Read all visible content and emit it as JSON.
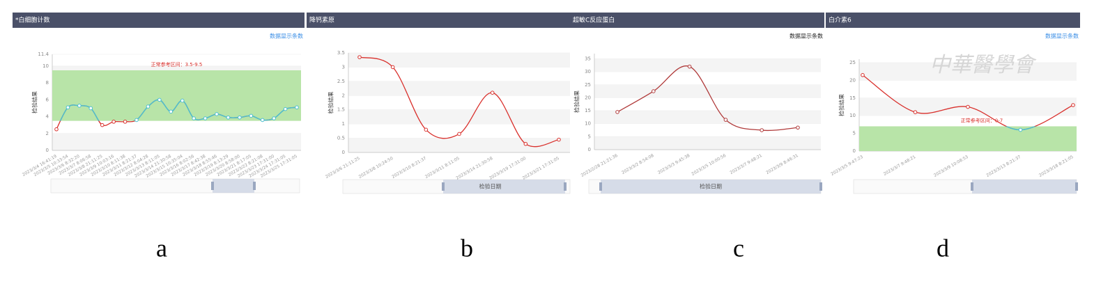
{
  "chart_data": [
    {
      "type": "line",
      "panel_title": "*白细胞计数",
      "data_count_link": "数据显示条数",
      "panel_label": "a",
      "ylabel": "检验结果",
      "reference_label": "正常参考区间：3.5-9.5",
      "reference_range": [
        3.5,
        9.5
      ],
      "band_color": "#b8e4a8",
      "in_range_color": "#4dbfd0",
      "out_range_color": "#d9302c",
      "categories": [
        "2023/3/4 16:41:19",
        "2023/3/5 10:33:54",
        "2023/3/6 8:32:20",
        "2023/3/7 8:06:58",
        "2023/3/8 21:11:25",
        "2023/3/9 10:03:16",
        "2023/3/10 8:11:38",
        "2023/3/11 8:21:37",
        "2023/3/12 8:04:28",
        "2023/3/13 8:11:05",
        "2023/3/14 21:30:58",
        "2023/3/15 10:35:04",
        "2023/3/16 8:02:56",
        "2023/3/17 8:42:38",
        "2023/3/18 8:55:46",
        "2023/3/19 8:13:29",
        "2023/3/20 8:58:00",
        "2023/3/21 8:17:05",
        "2023/3/22 8:21:08",
        "2023/3/23 17:31:00",
        "2023/3/24 17:31:05",
        "2023/3/25 17:31:05"
      ],
      "values": [
        2.5,
        5.1,
        5.3,
        5.0,
        3.0,
        3.4,
        3.4,
        3.6,
        5.2,
        6.0,
        4.6,
        5.9,
        3.8,
        3.8,
        4.3,
        3.9,
        3.9,
        4.1,
        3.6,
        3.8,
        4.9,
        5.1
      ],
      "ylim": [
        0,
        11.4
      ],
      "yticks": [
        0,
        2,
        4,
        6,
        8,
        10,
        11.4
      ]
    },
    {
      "type": "line",
      "panel_title": "降钙素原",
      "panel_label": "b",
      "ylabel": "检验结果",
      "xlabel": "检验日期",
      "color": "#d9302c",
      "categories": [
        "2023/3/6 21:11:25",
        "2023/3/8 10:24:50",
        "2023/3/10 8:21:37",
        "2023/3/11 8:11:05",
        "2023/3/14 21:30:58",
        "2023/3/19 17:31:00",
        "2023/3/21 17:31:05"
      ],
      "values": [
        3.35,
        3.0,
        0.8,
        0.65,
        2.1,
        0.3,
        0.45
      ],
      "ylim": [
        0,
        3.5
      ],
      "yticks": [
        0,
        0.5,
        1,
        1.5,
        2,
        2.5,
        3,
        3.5
      ]
    },
    {
      "type": "line",
      "panel_title": "超敏C反应蛋白",
      "data_count_link": "数据显示条数",
      "panel_label": "c",
      "ylabel": "检验结果",
      "xlabel": "检验日期",
      "color": "#b03a3a",
      "categories": [
        "2023/2/28 21:21:36",
        "2023/3/2 8:54:08",
        "2023/3/3 9:45:38",
        "2023/3/5 10:00:56",
        "2023/3/7 9:48:21",
        "2023/3/9 8:46:31"
      ],
      "values": [
        14.5,
        22.5,
        32,
        11.5,
        7.5,
        8.5
      ],
      "ylim": [
        0,
        37
      ],
      "yticks": [
        0,
        5,
        10,
        15,
        20,
        25,
        30,
        35
      ]
    },
    {
      "type": "line",
      "panel_title": "白介素6",
      "data_count_link": "数据显示条数",
      "panel_label": "d",
      "watermark": "中華醫學會",
      "ylabel": "检验结果",
      "reference_label": "正常参考区间：0-7",
      "reference_range": [
        0,
        7
      ],
      "band_color": "#b8e4a8",
      "in_range_color": "#4dbfd0",
      "out_range_color": "#d9302c",
      "categories": [
        "2023/3/5 9:47:23",
        "2023/3/7 9:48:21",
        "2023/3/9 10:08:53",
        "2023/3/13 8:21:37",
        "2023/3/18 8:21:05"
      ],
      "values": [
        21.5,
        11,
        12.5,
        6,
        13
      ],
      "ylim": [
        0,
        26
      ],
      "yticks": [
        0,
        5,
        10,
        15,
        20,
        25
      ]
    }
  ]
}
